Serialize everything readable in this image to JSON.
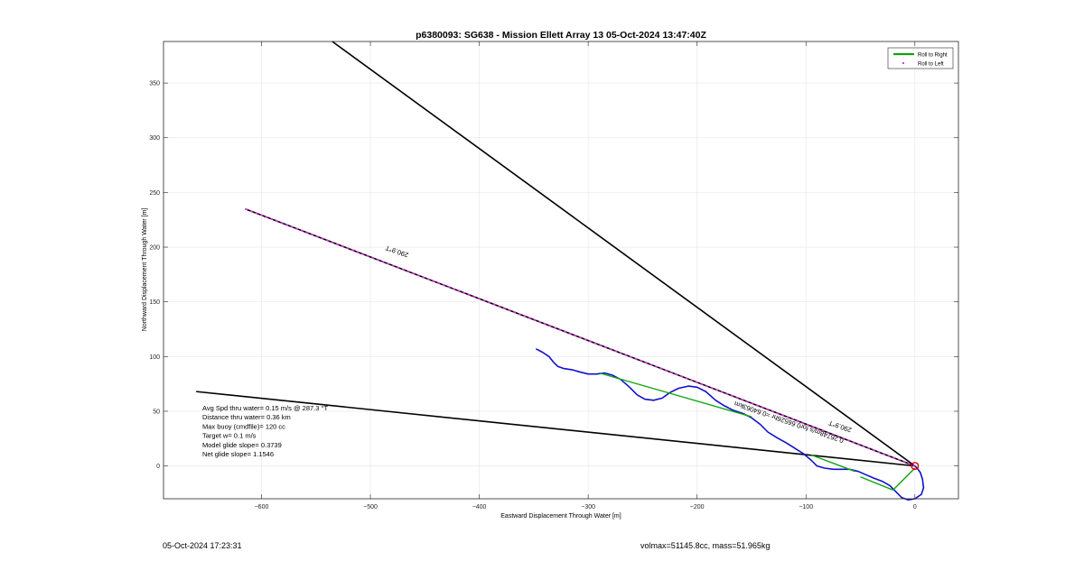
{
  "chart_data": {
    "type": "line",
    "title": "p6380093: SG638 - Mission Ellett Array 13 05-Oct-2024 13:47:40Z",
    "xlabel": "Eastward Displacement Through Water [m]",
    "ylabel": "Northward Displacement Through Water [m]",
    "xlim": [
      -690,
      40
    ],
    "ylim": [
      -30,
      388
    ],
    "xticks": [
      -600,
      -500,
      -400,
      -300,
      -200,
      -100,
      0
    ],
    "yticks": [
      0,
      50,
      100,
      150,
      200,
      250,
      300,
      350
    ],
    "grid": true,
    "legend_position": "top-right",
    "legend": [
      {
        "label": "Roll to Right",
        "color": "#12a312",
        "style": "line"
      },
      {
        "label": "Roll to Left",
        "color": "#cc33cc",
        "style": "dot"
      }
    ],
    "series": [
      {
        "name": "Roll to Right",
        "color": "#12a312",
        "segments": [
          [
            [
              -290,
              85
            ],
            [
              -150,
              45
            ]
          ],
          [
            [
              -95,
              10
            ],
            [
              -55,
              -5
            ]
          ],
          [
            [
              -50,
              -10
            ],
            [
              -20,
              -22
            ]
          ],
          [
            [
              -20,
              -22
            ],
            [
              0,
              -2
            ]
          ]
        ]
      },
      {
        "name": "Roll to Left",
        "color": "#cc33cc",
        "segments": [
          [
            [
              -615,
              235
            ],
            [
              0,
              0
            ]
          ]
        ]
      }
    ],
    "reference_lines": [
      {
        "color": "#000000",
        "points": [
          [
            -535,
            388
          ],
          [
            0,
            0
          ]
        ]
      },
      {
        "color": "#000000",
        "points": [
          [
            -615,
            235
          ],
          [
            0,
            0
          ]
        ]
      },
      {
        "color": "#000000",
        "points": [
          [
            -660,
            68
          ],
          [
            0,
            0
          ]
        ]
      }
    ],
    "track": {
      "color": "#1010cc",
      "points": [
        [
          -348,
          107
        ],
        [
          -342,
          104
        ],
        [
          -336,
          100
        ],
        [
          -332,
          95
        ],
        [
          -328,
          91
        ],
        [
          -322,
          89
        ],
        [
          -315,
          88
        ],
        [
          -308,
          86
        ],
        [
          -300,
          84
        ],
        [
          -292,
          84
        ],
        [
          -285,
          85
        ],
        [
          -278,
          83
        ],
        [
          -270,
          79
        ],
        [
          -262,
          72
        ],
        [
          -255,
          65
        ],
        [
          -248,
          61
        ],
        [
          -240,
          60
        ],
        [
          -232,
          62
        ],
        [
          -225,
          67
        ],
        [
          -217,
          71
        ],
        [
          -208,
          73
        ],
        [
          -200,
          72
        ],
        [
          -192,
          68
        ],
        [
          -183,
          60
        ],
        [
          -175,
          55
        ],
        [
          -167,
          51
        ],
        [
          -158,
          48
        ],
        [
          -150,
          44
        ],
        [
          -142,
          38
        ],
        [
          -135,
          31
        ],
        [
          -127,
          26
        ],
        [
          -118,
          21
        ],
        [
          -110,
          16
        ],
        [
          -102,
          11
        ],
        [
          -95,
          5
        ],
        [
          -90,
          0
        ],
        [
          -83,
          -2
        ],
        [
          -75,
          -3
        ],
        [
          -67,
          -3
        ],
        [
          -60,
          -3
        ],
        [
          -52,
          -5
        ],
        [
          -45,
          -8
        ],
        [
          -38,
          -11
        ],
        [
          -30,
          -14
        ],
        [
          -23,
          -18
        ],
        [
          -17,
          -24
        ],
        [
          -12,
          -29
        ],
        [
          -6,
          -31
        ],
        [
          0,
          -30
        ],
        [
          6,
          -26
        ],
        [
          8,
          -20
        ],
        [
          7,
          -12
        ],
        [
          5,
          -6
        ],
        [
          2,
          -2
        ],
        [
          0,
          0
        ]
      ]
    },
    "current_position": {
      "x": 0,
      "y": 0,
      "color": "#dd0000"
    },
    "annotations": [
      {
        "text": "290.9°T",
        "x": -475,
        "y": 198
      },
      {
        "text": "290.9°T",
        "x": -68,
        "y": 38
      },
      {
        "text": "0.26748m/s for0.66526hr =0.64063km",
        "x": -115,
        "y": 42
      }
    ],
    "info_text": [
      "Avg Spd thru water=  0.15 m/s @ 287.3 °T",
      "Distance thru water=  0.36 km",
      "Max buoy (cmdfile)= 120 cc",
      "Target w= 0.1 m/s",
      "Model glide slope= 0.3739",
      "Net glide slope= 1.1546"
    ]
  },
  "footer": {
    "left": "05-Oct-2024 17:23:31",
    "right": "volmax=51145.8cc, mass=51.965kg"
  }
}
